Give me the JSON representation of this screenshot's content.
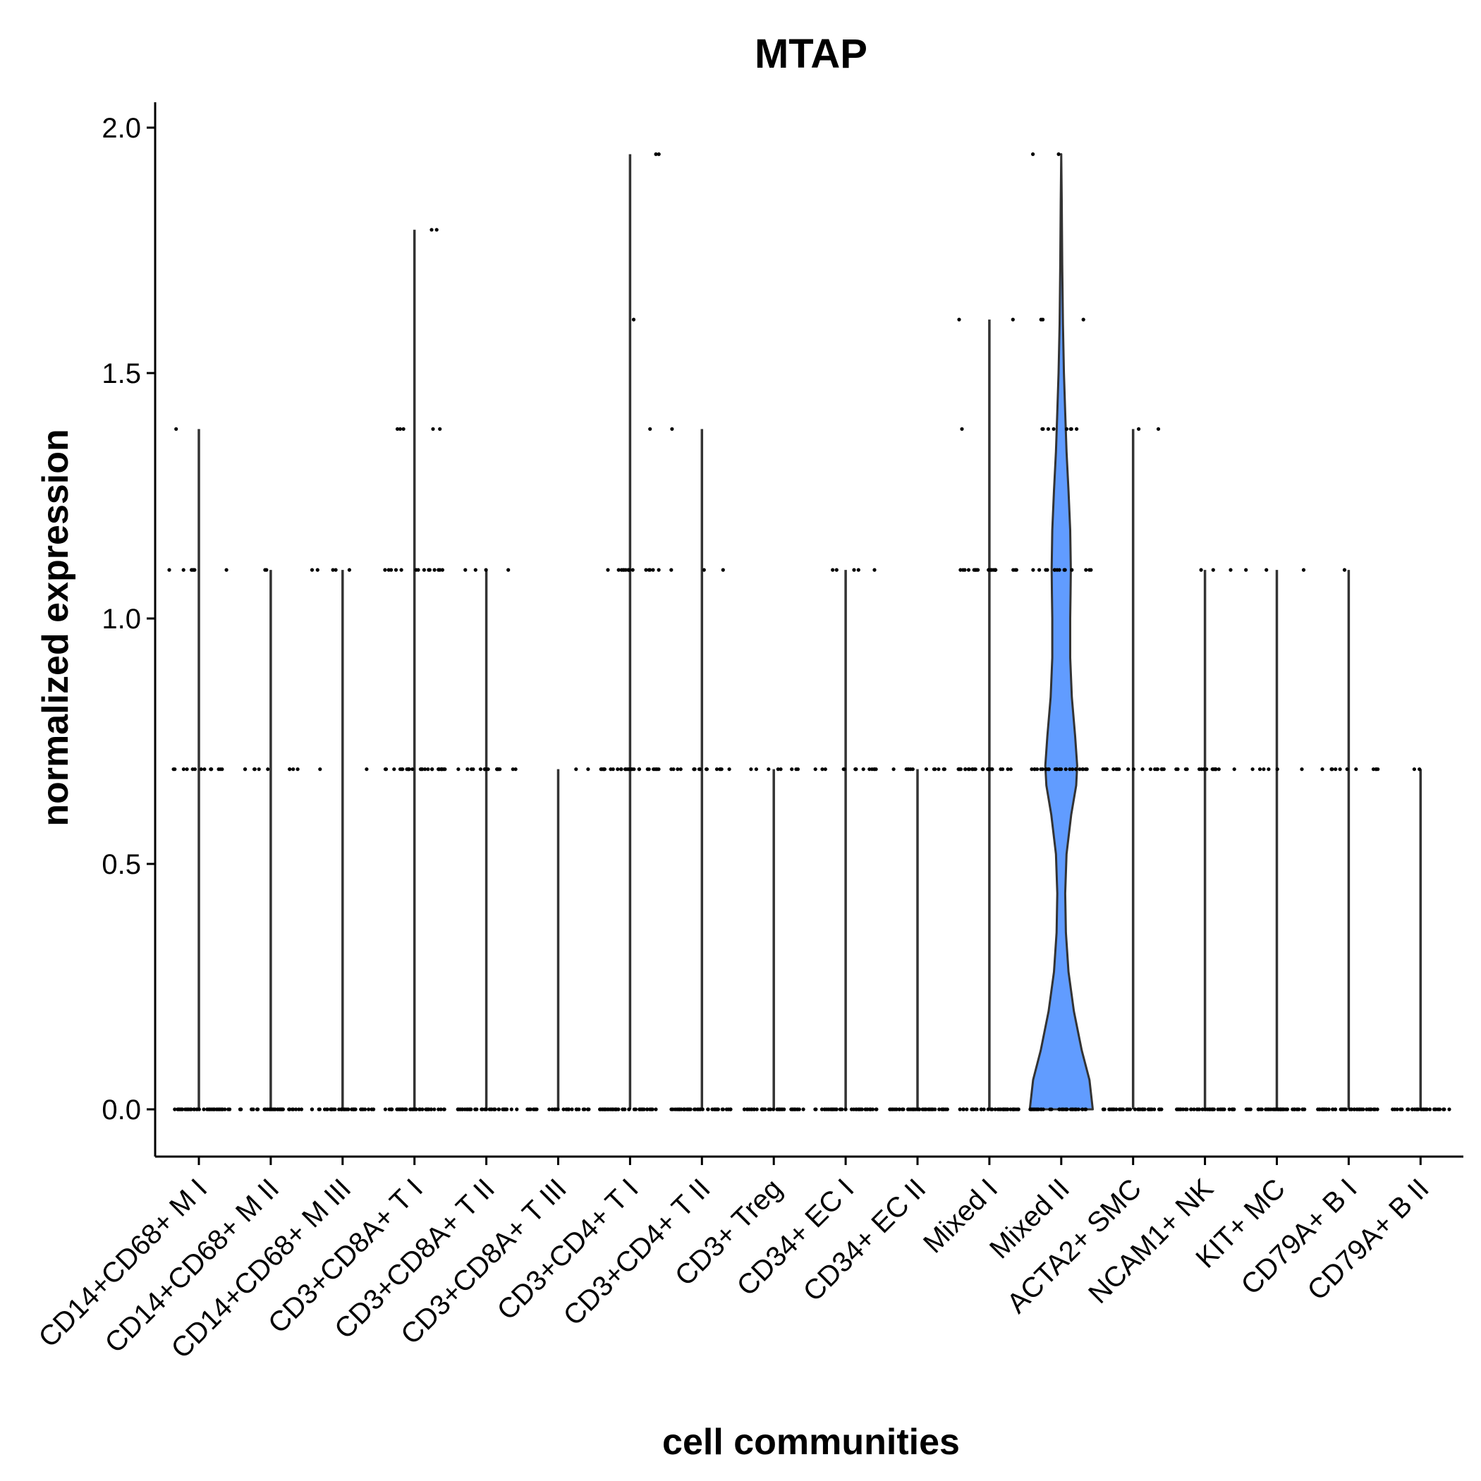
{
  "chart_data": {
    "type": "violin",
    "title": "MTAP",
    "xlabel": "cell communities",
    "ylabel": "normalized expression",
    "ylim": [
      -0.1,
      2.05
    ],
    "yticks": [
      0.0,
      0.5,
      1.0,
      1.5,
      2.0
    ],
    "ytick_labels": [
      "0.0",
      "0.5",
      "1.0",
      "1.5",
      "2.0"
    ],
    "fill_color": "#619CFF",
    "categories": [
      "CD14+CD68+ M I",
      "CD14+CD68+ M II",
      "CD14+CD68+ M III",
      "CD3+CD8A+ T I",
      "CD3+CD8A+ T II",
      "CD3+CD8A+ T III",
      "CD3+CD4+ T I",
      "CD3+CD4+ T II",
      "CD3+ Treg",
      "CD34+ EC I",
      "CD34+ EC II",
      "Mixed I",
      "Mixed II",
      "ACTA2+ SMC",
      "NCAM1+ NK",
      "KIT+ MC",
      "CD79A+ B I",
      "CD79A+ B II"
    ],
    "groups": [
      {
        "max": 1.386,
        "levels": [
          [
            0.0,
            40
          ],
          [
            0.693,
            14
          ],
          [
            1.099,
            7
          ],
          [
            1.386,
            1
          ]
        ]
      },
      {
        "max": 1.099,
        "levels": [
          [
            0.0,
            40
          ],
          [
            0.693,
            10
          ],
          [
            1.099,
            2
          ]
        ]
      },
      {
        "max": 1.099,
        "levels": [
          [
            0.0,
            40
          ],
          [
            0.693,
            2
          ],
          [
            1.099,
            5
          ]
        ]
      },
      {
        "max": 1.792,
        "levels": [
          [
            0.0,
            45
          ],
          [
            0.693,
            28
          ],
          [
            1.099,
            14
          ],
          [
            1.386,
            5
          ],
          [
            1.792,
            2
          ]
        ]
      },
      {
        "max": 1.099,
        "levels": [
          [
            0.0,
            40
          ],
          [
            0.693,
            16
          ],
          [
            1.099,
            4
          ]
        ]
      },
      {
        "max": 0.693,
        "levels": [
          [
            0.0,
            30
          ],
          [
            0.693,
            2
          ]
        ]
      },
      {
        "max": 1.946,
        "levels": [
          [
            0.0,
            45
          ],
          [
            0.693,
            28
          ],
          [
            1.099,
            16
          ],
          [
            1.386,
            1
          ],
          [
            1.609,
            1
          ],
          [
            1.946,
            2
          ]
        ]
      },
      {
        "max": 1.386,
        "levels": [
          [
            0.0,
            40
          ],
          [
            0.693,
            16
          ],
          [
            1.099,
            3
          ],
          [
            1.386,
            1
          ]
        ]
      },
      {
        "max": 0.693,
        "levels": [
          [
            0.0,
            40
          ],
          [
            0.693,
            8
          ]
        ]
      },
      {
        "max": 1.099,
        "levels": [
          [
            0.0,
            40
          ],
          [
            0.693,
            14
          ],
          [
            1.099,
            5
          ]
        ]
      },
      {
        "max": 0.693,
        "levels": [
          [
            0.0,
            40
          ],
          [
            0.693,
            12
          ]
        ]
      },
      {
        "max": 1.609,
        "levels": [
          [
            0.0,
            40
          ],
          [
            0.693,
            25
          ],
          [
            1.099,
            20
          ],
          [
            1.386,
            1
          ],
          [
            1.609,
            2
          ]
        ]
      },
      {
        "max": 1.946,
        "levels": [
          [
            0.0,
            40
          ],
          [
            0.693,
            25
          ],
          [
            1.099,
            14
          ],
          [
            1.386,
            8
          ],
          [
            1.609,
            3
          ],
          [
            1.946,
            2
          ]
        ]
      },
      {
        "max": 1.386,
        "levels": [
          [
            0.0,
            45
          ],
          [
            0.693,
            18
          ],
          [
            1.386,
            2
          ]
        ]
      },
      {
        "max": 1.099,
        "levels": [
          [
            0.0,
            45
          ],
          [
            0.693,
            16
          ],
          [
            1.099,
            3
          ]
        ]
      },
      {
        "max": 1.099,
        "levels": [
          [
            0.0,
            45
          ],
          [
            0.693,
            6
          ],
          [
            1.099,
            3
          ]
        ]
      },
      {
        "max": 1.099,
        "levels": [
          [
            0.0,
            45
          ],
          [
            0.693,
            12
          ],
          [
            1.099,
            1
          ]
        ]
      },
      {
        "max": 0.693,
        "levels": [
          [
            0.0,
            30
          ],
          [
            0.693,
            2
          ]
        ]
      }
    ],
    "violin_profile": {
      "group": "Mixed II",
      "density": [
        [
          0.0,
          0.95
        ],
        [
          0.06,
          0.85
        ],
        [
          0.12,
          0.62
        ],
        [
          0.2,
          0.38
        ],
        [
          0.28,
          0.22
        ],
        [
          0.36,
          0.14
        ],
        [
          0.44,
          0.12
        ],
        [
          0.52,
          0.16
        ],
        [
          0.6,
          0.3
        ],
        [
          0.66,
          0.45
        ],
        [
          0.7,
          0.48
        ],
        [
          0.76,
          0.42
        ],
        [
          0.84,
          0.32
        ],
        [
          0.92,
          0.27
        ],
        [
          1.0,
          0.27
        ],
        [
          1.05,
          0.28
        ],
        [
          1.1,
          0.29
        ],
        [
          1.18,
          0.27
        ],
        [
          1.26,
          0.22
        ],
        [
          1.34,
          0.16
        ],
        [
          1.42,
          0.12
        ],
        [
          1.5,
          0.08
        ],
        [
          1.6,
          0.05
        ],
        [
          1.72,
          0.03
        ],
        [
          1.85,
          0.015
        ],
        [
          1.946,
          0.0
        ]
      ]
    }
  }
}
